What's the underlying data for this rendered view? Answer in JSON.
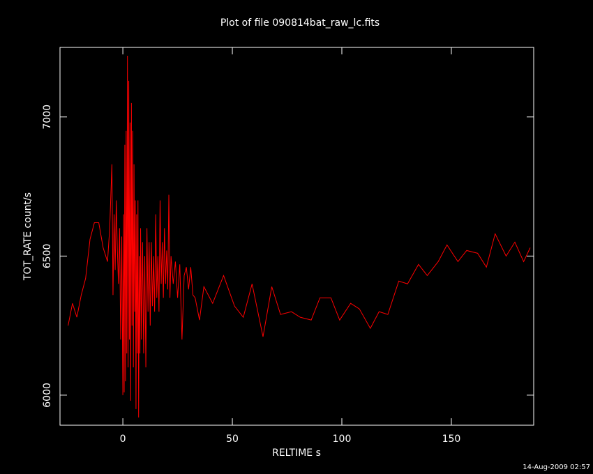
{
  "chart_data": {
    "type": "line",
    "title": "Plot of file 090814bat_raw_lc.fits",
    "xlabel": "RELTIME  s",
    "ylabel": "TOT_RATE  count/s",
    "footer": "14-Aug-2009 02:57",
    "x": [
      -25,
      -23,
      -21,
      -19,
      -17,
      -15,
      -13,
      -11,
      -9,
      -7,
      -6,
      -5,
      -4.5,
      -4,
      -3.5,
      -3,
      -2.5,
      -2,
      -1.5,
      -1,
      -0.5,
      0,
      0.3,
      0.6,
      0.9,
      1.2,
      1.5,
      1.8,
      2.1,
      2.4,
      2.7,
      3,
      3.3,
      3.6,
      3.9,
      4.2,
      4.5,
      4.8,
      5.1,
      5.4,
      5.7,
      6,
      6.3,
      6.6,
      6.9,
      7.2,
      7.5,
      7.8,
      8.1,
      8.5,
      9,
      9.5,
      10,
      10.5,
      11,
      11.5,
      12,
      12.5,
      13,
      13.5,
      14,
      14.5,
      15,
      15.5,
      16,
      16.5,
      17,
      17.5,
      18,
      18.5,
      19,
      19.5,
      20,
      20.5,
      21,
      21.5,
      22,
      23,
      24,
      25,
      26,
      27,
      28,
      29,
      30,
      31,
      32,
      33,
      35,
      37,
      41,
      46,
      51,
      55,
      59,
      64,
      68,
      72,
      77,
      81,
      86,
      90,
      95,
      99,
      104,
      108,
      113,
      117,
      121,
      126,
      130,
      135,
      139,
      144,
      148,
      153,
      157,
      162,
      166,
      170,
      175,
      179,
      183,
      186
    ],
    "series": [
      {
        "name": "TOT_RATE",
        "color": "#ff0000",
        "values": [
          6250,
          6330,
          6280,
          6360,
          6420,
          6560,
          6620,
          6620,
          6530,
          6480,
          6600,
          6830,
          6360,
          6650,
          6450,
          6700,
          6520,
          6400,
          6600,
          6200,
          6570,
          6000,
          6650,
          6010,
          6900,
          6050,
          6950,
          6150,
          7220,
          6100,
          7130,
          6200,
          6980,
          5980,
          7050,
          6250,
          6950,
          6100,
          6830,
          6300,
          6700,
          5950,
          6650,
          6150,
          6700,
          5920,
          6500,
          6150,
          6600,
          6200,
          6550,
          6150,
          6500,
          6100,
          6600,
          6300,
          6550,
          6250,
          6550,
          6320,
          6500,
          6300,
          6650,
          6350,
          6500,
          6300,
          6700,
          6400,
          6550,
          6350,
          6600,
          6400,
          6520,
          6380,
          6720,
          6350,
          6500,
          6400,
          6480,
          6350,
          6470,
          6200,
          6430,
          6460,
          6380,
          6460,
          6360,
          6350,
          6270,
          6390,
          6330,
          6430,
          6320,
          6280,
          6400,
          6210,
          6390,
          6290,
          6300,
          6280,
          6270,
          6350,
          6350,
          6270,
          6330,
          6310,
          6240,
          6300,
          6290,
          6410,
          6400,
          6470,
          6430,
          6480,
          6540,
          6480,
          6520,
          6510,
          6460,
          6580,
          6500,
          6550,
          6480,
          6530
        ]
      }
    ],
    "xlim": [
      -28.7,
      187.6
    ],
    "ylim": [
      5892,
      7250
    ],
    "xticks": [
      0,
      50,
      100,
      150
    ],
    "yticks": [
      6000,
      6500,
      7000
    ]
  }
}
